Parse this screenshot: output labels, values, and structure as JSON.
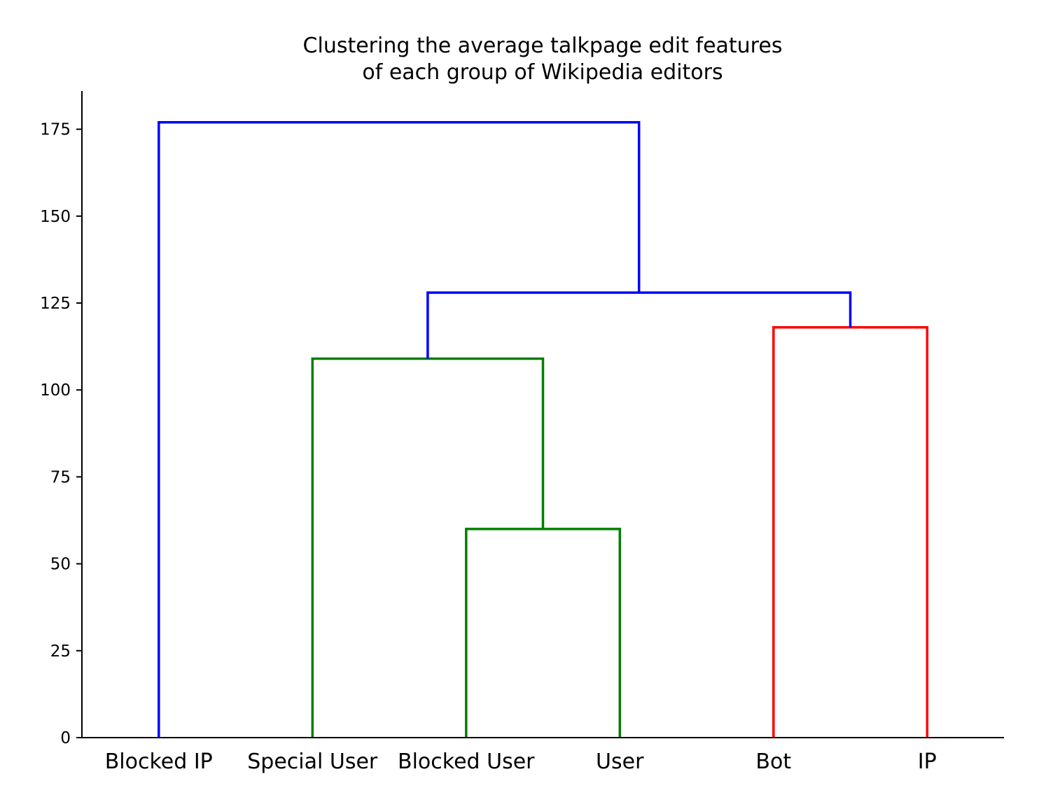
{
  "chart_data": {
    "type": "dendrogram",
    "title": [
      "Clustering the average talkpage edit features",
      "of each group of Wikipedia editors"
    ],
    "xlabel": "",
    "ylabel": "",
    "leaves": [
      "Blocked IP",
      "Special User",
      "Blocked User",
      "User",
      "Bot",
      "IP"
    ],
    "yticks": [
      0,
      25,
      50,
      75,
      100,
      125,
      150,
      175
    ],
    "ylim": [
      0,
      186
    ],
    "grid": false,
    "links": [
      {
        "left": "Blocked User",
        "right": "User",
        "height": 60,
        "color": "#008000"
      },
      {
        "left": "Special User",
        "right": "Blocked User + User",
        "height": 109,
        "color": "#008000"
      },
      {
        "left": "Bot",
        "right": "IP",
        "height": 118,
        "color": "#ff0000"
      },
      {
        "left": "Special User + Blocked User + User",
        "right": "Bot + IP",
        "height": 128,
        "color": "#0000ff"
      },
      {
        "left": "Blocked IP",
        "right": "Special User + Blocked User + User + Bot + IP",
        "height": 177,
        "color": "#0000ff"
      }
    ],
    "colors": {
      "cluster_1": "#008000",
      "cluster_2": "#ff0000",
      "above_threshold": "#0000ff",
      "axis": "#000000"
    }
  }
}
